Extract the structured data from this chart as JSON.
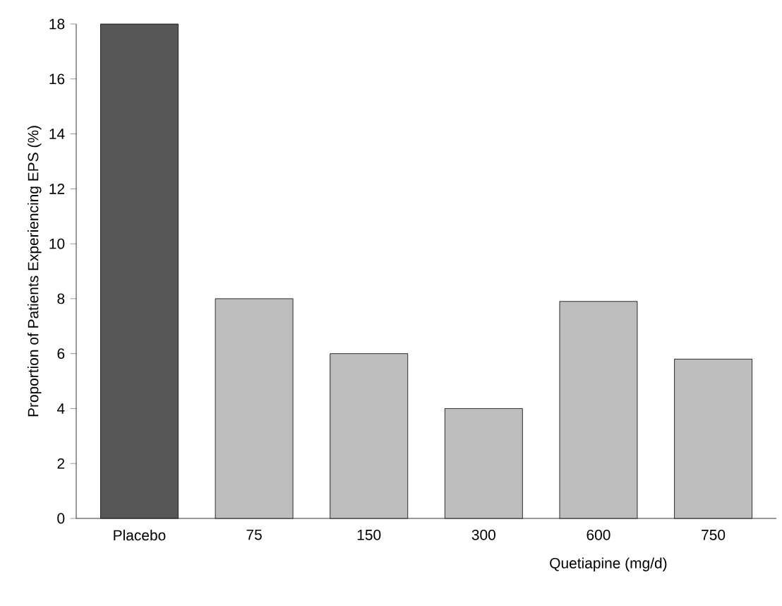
{
  "chart_data": {
    "type": "bar",
    "xlabel": "Quetiapine (mg/d)",
    "ylabel": "Proportion of Patients Experiencing EPS (%)",
    "categories": [
      "Placebo",
      "75",
      "150",
      "300",
      "600",
      "750"
    ],
    "values": [
      18,
      8,
      6,
      4,
      7.9,
      5.8
    ],
    "colors": [
      "#575757",
      "#bdbdbd",
      "#bdbdbd",
      "#bdbdbd",
      "#bdbdbd",
      "#bdbdbd"
    ],
    "ylim": [
      0,
      18
    ],
    "yticks": [
      0,
      2,
      4,
      6,
      8,
      10,
      12,
      14,
      16,
      18
    ],
    "grid": false
  }
}
